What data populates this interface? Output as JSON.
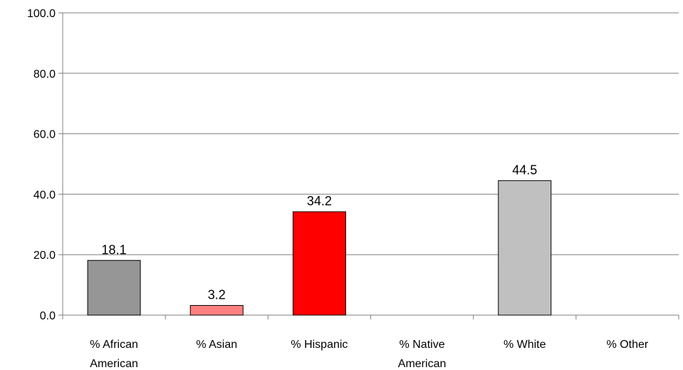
{
  "chart_data": {
    "type": "bar",
    "categories": [
      "% African American",
      "% Asian",
      "% Hispanic",
      "% Native American",
      "% White",
      "% Other"
    ],
    "category_lines": [
      [
        "% African",
        "American"
      ],
      [
        "% Asian"
      ],
      [
        "% Hispanic"
      ],
      [
        "% Native",
        "American"
      ],
      [
        "% White"
      ],
      [
        "% Other"
      ]
    ],
    "values": [
      18.1,
      3.2,
      34.2,
      null,
      44.5,
      null
    ],
    "data_labels": [
      "18.1",
      "3.2",
      "34.2",
      "",
      "44.5",
      ""
    ],
    "bar_colors": [
      "#969696",
      "#ff8080",
      "#ff0000",
      "#ffffff",
      "#c0c0c0",
      "#ffffff"
    ],
    "ylim": [
      0,
      100
    ],
    "yticks": [
      "0.0",
      "20.0",
      "40.0",
      "60.0",
      "80.0",
      "100.0"
    ],
    "ytick_values": [
      0,
      20,
      40,
      60,
      80,
      100
    ],
    "grid": true,
    "title": "",
    "xlabel": "",
    "ylabel": ""
  }
}
